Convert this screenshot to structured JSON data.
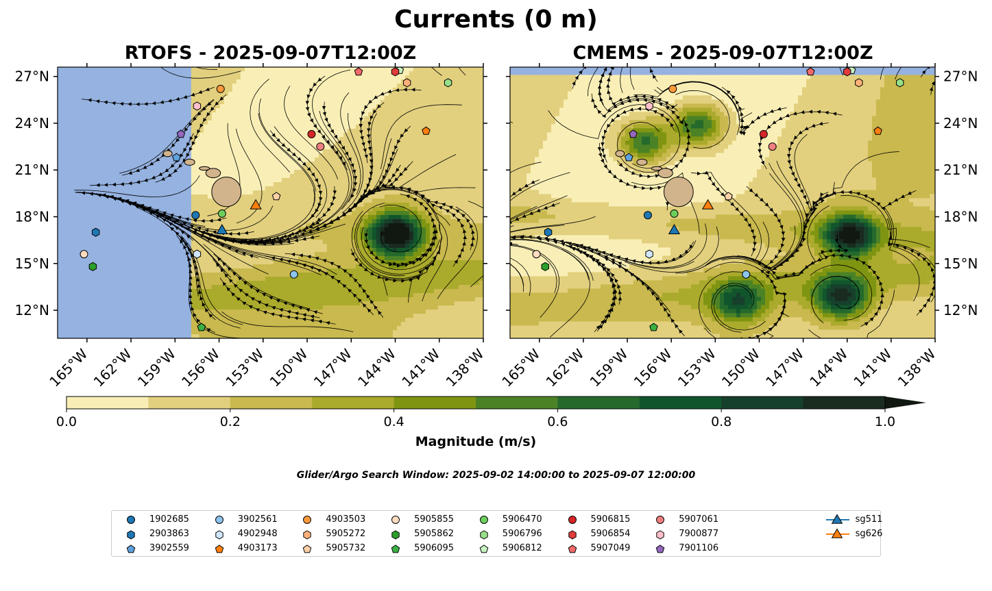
{
  "figure": {
    "title": "Currents (0 m)",
    "search_window": "Glider/Argo Search Window: 2025-09-02 14:00:00 to 2025-09-07 12:00:00"
  },
  "chart_data": {
    "type": "heatmap",
    "panels": [
      {
        "title": "RTOFS - 2025-09-07T12:00Z",
        "model": "RTOFS"
      },
      {
        "title": "CMEMS - 2025-09-07T12:00Z",
        "model": "CMEMS"
      }
    ],
    "variable": "Surface current magnitude with streamlines",
    "xlim": [
      -167,
      -138
    ],
    "ylim": [
      10.2,
      27.6
    ],
    "x_ticks": [
      -165,
      -162,
      -159,
      -156,
      -153,
      -150,
      -147,
      -144,
      -141,
      -138
    ],
    "x_tick_labels": [
      "165°W",
      "162°W",
      "159°W",
      "156°W",
      "153°W",
      "150°W",
      "147°W",
      "144°W",
      "141°W",
      "138°W"
    ],
    "y_ticks": [
      12,
      15,
      18,
      21,
      24,
      27
    ],
    "y_tick_labels": [
      "12°N",
      "15°N",
      "18°N",
      "21°N",
      "24°N",
      "27°N"
    ],
    "colorbar": {
      "label": "Magnitude (m/s)",
      "levels": [
        0.0,
        0.1,
        0.2,
        0.3,
        0.4,
        0.5,
        0.6,
        0.7,
        0.8,
        0.9,
        1.0
      ],
      "colors": [
        "#f9efb6",
        "#e2d07e",
        "#c9b94e",
        "#aaaa2c",
        "#7f9512",
        "#4c8226",
        "#256a2c",
        "#11552c",
        "#17402c",
        "#1a2b20"
      ],
      "extend_color": "#111811",
      "tick_values": [
        0.0,
        0.2,
        0.4,
        0.6,
        0.8,
        1.0
      ],
      "tick_labels": [
        "0.0",
        "0.2",
        "0.4",
        "0.6",
        "0.8",
        "1.0"
      ]
    },
    "rtofs_domain_west_lon": -157.9,
    "land": {
      "color": "#d2b48c",
      "name": "Hawaiian Islands"
    },
    "ocean_mask_color": "#95b2e0",
    "features": [
      {
        "type": "eddy",
        "lon": -144,
        "lat": 16.9,
        "magnitude": 1.0,
        "panel": "RTOFS"
      },
      {
        "type": "eddy",
        "lon": -143.8,
        "lat": 16.8,
        "magnitude": 0.8,
        "panel": "CMEMS"
      },
      {
        "type": "eddy",
        "lon": -144.4,
        "lat": 12.8,
        "magnitude": 0.7,
        "panel": "CMEMS"
      },
      {
        "type": "eddy",
        "lon": -151.4,
        "lat": 12.5,
        "magnitude": 0.55,
        "panel": "CMEMS"
      },
      {
        "type": "eddy",
        "lon": -154.2,
        "lat": 23.9,
        "magnitude": 0.6,
        "panel": "CMEMS"
      },
      {
        "type": "eddy",
        "lon": -157.8,
        "lat": 22.8,
        "magnitude": 0.6,
        "panel": "CMEMS"
      }
    ],
    "platforms": [
      {
        "id": "1902685",
        "type": "argo",
        "marker": "circle",
        "color": "#1f77b4",
        "lon": -157.6,
        "lat": 18.1
      },
      {
        "id": "2903863",
        "type": "argo",
        "marker": "hexagon",
        "color": "#1f77b4",
        "lon": -164.4,
        "lat": 17.0
      },
      {
        "id": "3902559",
        "type": "argo",
        "marker": "pentagon",
        "color": "#5fa2dd",
        "lon": -158.9,
        "lat": 21.8
      },
      {
        "id": "3902561",
        "type": "argo",
        "marker": "circle",
        "color": "#8cc4ec",
        "lon": -150.9,
        "lat": 14.3
      },
      {
        "id": "4902948",
        "type": "argo",
        "marker": "hexagon",
        "color": "#cfe7ff",
        "lon": -157.5,
        "lat": 15.6
      },
      {
        "id": "4903173",
        "type": "argo",
        "marker": "pentagon",
        "color": "#ff7f0e",
        "lon": -141.9,
        "lat": 23.5
      },
      {
        "id": "4903503",
        "type": "argo",
        "marker": "circle",
        "color": "#ff9a3c",
        "lon": -155.9,
        "lat": 26.2
      },
      {
        "id": "5905272",
        "type": "argo",
        "marker": "hexagon",
        "color": "#ffb07a",
        "lon": -143.2,
        "lat": 26.6
      },
      {
        "id": "5905732",
        "type": "argo",
        "marker": "pentagon",
        "color": "#ffd1a8",
        "lon": -152.1,
        "lat": 19.3
      },
      {
        "id": "5905855",
        "type": "argo",
        "marker": "circle",
        "color": "#ffdcc0",
        "lon": -165.2,
        "lat": 15.6
      },
      {
        "id": "5905862",
        "type": "argo",
        "marker": "hexagon",
        "color": "#2ca02c",
        "lon": -164.6,
        "lat": 14.8
      },
      {
        "id": "5906095",
        "type": "argo",
        "marker": "pentagon",
        "color": "#3cb043",
        "lon": -157.2,
        "lat": 10.9
      },
      {
        "id": "5906470",
        "type": "argo",
        "marker": "circle",
        "color": "#6ccf5c",
        "lon": -155.8,
        "lat": 18.2
      },
      {
        "id": "5906796",
        "type": "argo",
        "marker": "hexagon",
        "color": "#98df8a",
        "lon": -140.4,
        "lat": 26.6
      },
      {
        "id": "5906812",
        "type": "argo",
        "marker": "pentagon",
        "color": "#c8f2c0",
        "lon": -143.7,
        "lat": 27.4
      },
      {
        "id": "5906815",
        "type": "argo",
        "marker": "circle",
        "color": "#d62728",
        "lon": -149.7,
        "lat": 23.3
      },
      {
        "id": "5906854",
        "type": "argo",
        "marker": "hexagon",
        "color": "#e03c3c",
        "lon": -144.0,
        "lat": 27.3
      },
      {
        "id": "5907049",
        "type": "argo",
        "marker": "pentagon",
        "color": "#f06a6a",
        "lon": -146.5,
        "lat": 27.3
      },
      {
        "id": "5907061",
        "type": "argo",
        "marker": "circle",
        "color": "#f08080",
        "lon": -149.1,
        "lat": 22.5
      },
      {
        "id": "7900877",
        "type": "argo",
        "marker": "hexagon",
        "color": "#ffc0cb",
        "lon": -157.5,
        "lat": 25.1
      },
      {
        "id": "7901106",
        "type": "argo",
        "marker": "pentagon",
        "color": "#9467bd",
        "lon": -158.6,
        "lat": 23.3
      },
      {
        "id": "sg511",
        "type": "glider",
        "marker": "triangle",
        "color": "#1f77b4",
        "lon": -155.8,
        "lat": 17.1
      },
      {
        "id": "sg626",
        "type": "glider",
        "marker": "triangle",
        "color": "#ff7f0e",
        "lon": -153.5,
        "lat": 18.7
      }
    ]
  }
}
